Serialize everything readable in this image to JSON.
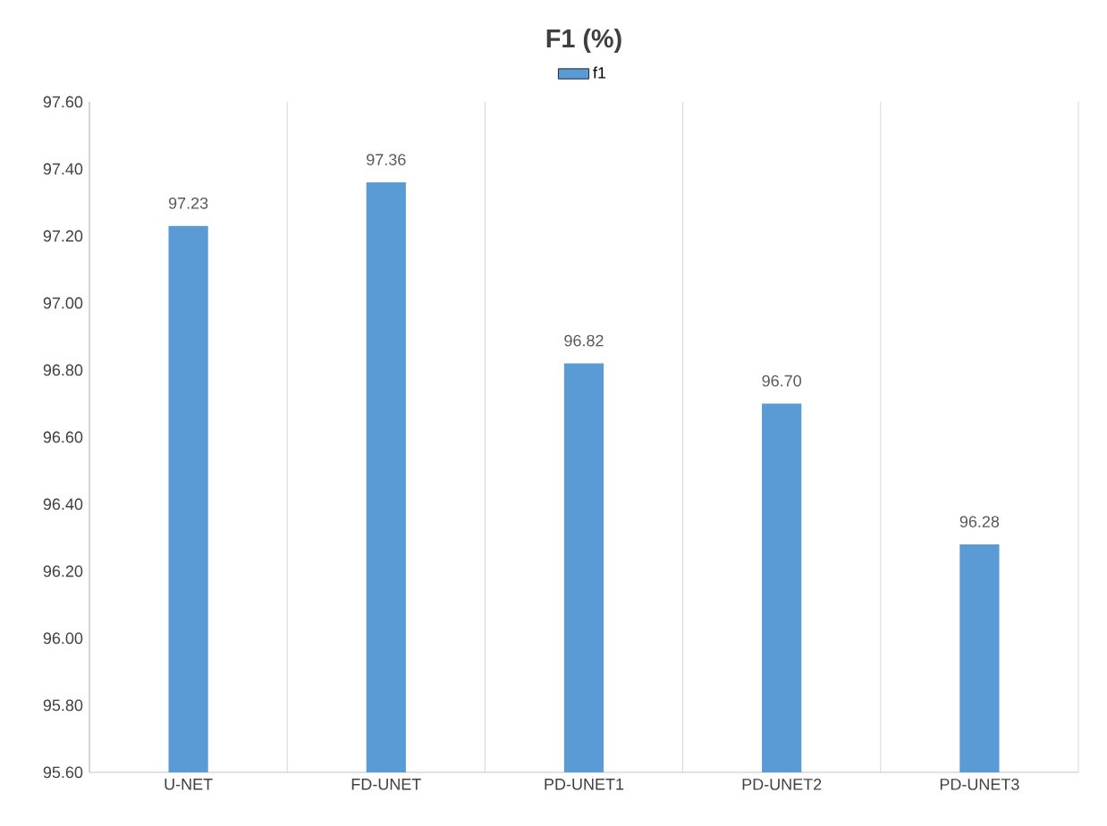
{
  "chart_data": {
    "type": "bar",
    "title": "F1  (%)",
    "categories": [
      "U-NET",
      "FD-UNET",
      "PD-UNET1",
      "PD-UNET2",
      "PD-UNET3"
    ],
    "series": [
      {
        "name": "f1",
        "color": "#5b9bd5",
        "values": [
          97.23,
          97.36,
          96.82,
          96.7,
          96.28
        ],
        "value_labels": [
          "97.23",
          "97.36",
          "96.82",
          "96.70",
          "96.28"
        ]
      }
    ],
    "ylim": [
      95.6,
      97.6
    ],
    "yticks": [
      {
        "value": 95.6,
        "label": "95.60"
      },
      {
        "value": 95.8,
        "label": "95.80"
      },
      {
        "value": 96.0,
        "label": "96.00"
      },
      {
        "value": 96.2,
        "label": "96.20"
      },
      {
        "value": 96.4,
        "label": "96.40"
      },
      {
        "value": 96.6,
        "label": "96.60"
      },
      {
        "value": 96.8,
        "label": "96.80"
      },
      {
        "value": 97.0,
        "label": "97.00"
      },
      {
        "value": 97.2,
        "label": "97.20"
      },
      {
        "value": 97.4,
        "label": "97.40"
      },
      {
        "value": 97.6,
        "label": "97.60"
      }
    ],
    "grid": "x",
    "legend": "top"
  }
}
